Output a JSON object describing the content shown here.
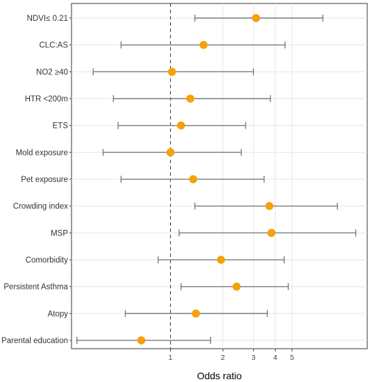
{
  "chart_data": {
    "type": "forest",
    "xlabel": "Odds ratio",
    "x_scale": "log",
    "xlim": [
      0.27,
      13.5
    ],
    "x_ticks": [
      1,
      2,
      3,
      4,
      5
    ],
    "x_tick_labels": [
      "1",
      "2",
      "3",
      "4",
      "5"
    ],
    "reference_line": 1,
    "grid": true,
    "point_color": "#f5a10a",
    "ci_color": "#7a7a7a",
    "rows": [
      {
        "label": "NDVI≤ 0.21",
        "or": 3.1,
        "lower": 1.38,
        "upper": 7.5
      },
      {
        "label": "CLC:AS",
        "or": 1.55,
        "lower": 0.52,
        "upper": 4.55
      },
      {
        "label": "NO2 ≥40",
        "or": 1.02,
        "lower": 0.36,
        "upper": 3.0
      },
      {
        "label": "HTR <200m",
        "or": 1.3,
        "lower": 0.47,
        "upper": 3.75
      },
      {
        "label": "ETS",
        "or": 1.15,
        "lower": 0.5,
        "upper": 2.7
      },
      {
        "label": "Mold exposure",
        "or": 1.0,
        "lower": 0.41,
        "upper": 2.55
      },
      {
        "label": "Pet exposure",
        "or": 1.35,
        "lower": 0.52,
        "upper": 3.45
      },
      {
        "label": "Crowding index",
        "or": 3.7,
        "lower": 1.38,
        "upper": 9.1
      },
      {
        "label": "MSP",
        "or": 3.8,
        "lower": 1.12,
        "upper": 11.6
      },
      {
        "label": "Comorbidity",
        "or": 1.95,
        "lower": 0.85,
        "upper": 4.5
      },
      {
        "label": "Persistent Asthma",
        "or": 2.4,
        "lower": 1.15,
        "upper": 4.75
      },
      {
        "label": "Atopy",
        "or": 1.4,
        "lower": 0.55,
        "upper": 3.6
      },
      {
        "label": "Parental education",
        "or": 0.68,
        "lower": 0.29,
        "upper": 1.7
      }
    ]
  }
}
